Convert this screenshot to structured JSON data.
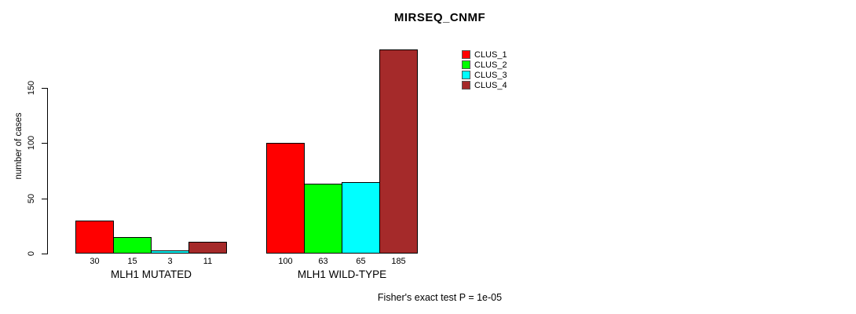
{
  "chart_data": {
    "type": "bar",
    "title": "MIRSEQ_CNMF",
    "ylabel": "number of cases",
    "xlabel": "",
    "categories": [
      "MLH1 MUTATED",
      "MLH1 WILD-TYPE"
    ],
    "series": [
      {
        "name": "CLUS_1",
        "color": "#ff0000",
        "values": [
          30,
          100
        ]
      },
      {
        "name": "CLUS_2",
        "color": "#00ff00",
        "values": [
          15,
          63
        ]
      },
      {
        "name": "CLUS_3",
        "color": "#00ffff",
        "values": [
          3,
          65
        ]
      },
      {
        "name": "CLUS_4",
        "color": "#a52a2a",
        "values": [
          11,
          185
        ]
      }
    ],
    "bar_value_labels": [
      [
        "30",
        "15",
        "3",
        "11"
      ],
      [
        "100",
        "63",
        "65",
        "185"
      ]
    ],
    "yticks": [
      0,
      50,
      100,
      150
    ],
    "ylim": [
      0,
      150
    ],
    "grid": false,
    "legend_position": "top-right",
    "annotation": "Fisher's exact test P = 1e-05",
    "axis_color": "#000000",
    "background_color": "#ffffff"
  }
}
